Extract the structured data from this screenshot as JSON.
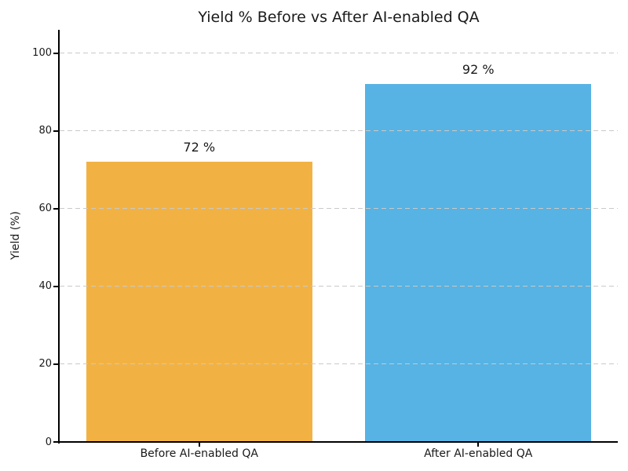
{
  "chart_data": {
    "type": "bar",
    "title": "Yield % Before vs After AI-enabled QA",
    "ylabel": "Yield (%)",
    "xlabel": "",
    "categories": [
      "Before AI-enabled QA",
      "After AI-enabled QA"
    ],
    "values": [
      72,
      92
    ],
    "bar_labels": [
      "72 %",
      "92 %"
    ],
    "bar_colors": [
      "#F2B243",
      "#57B3E3"
    ],
    "yticks": [
      0,
      20,
      40,
      60,
      80,
      100
    ],
    "ylim": [
      0,
      106
    ],
    "grid": {
      "axis": "y",
      "style": "dashed",
      "color": "#C9C9C9",
      "drawn_above_bars": true
    },
    "legend": "none",
    "colors": {
      "background": "#FFFFFF",
      "text": "#1A1A1A",
      "spine": "#000000"
    }
  }
}
